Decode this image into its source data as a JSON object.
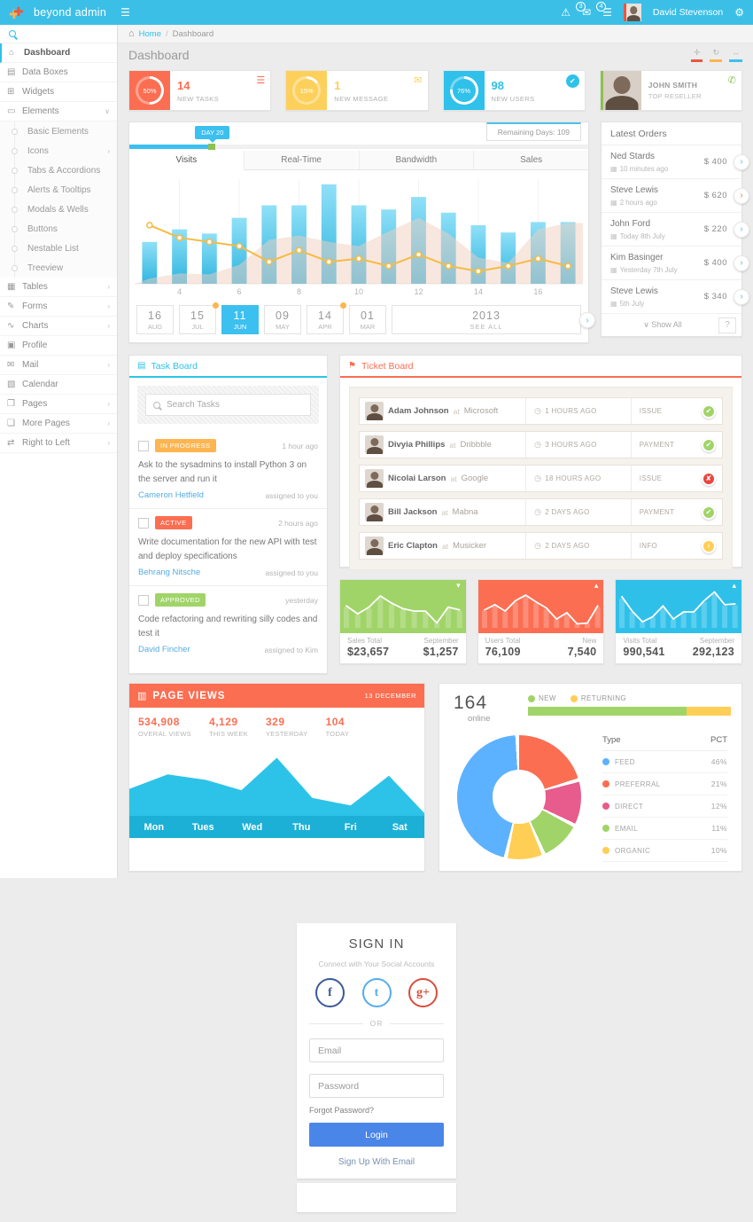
{
  "nav": {
    "brand": "beyond admin",
    "user_name": "David Stevenson",
    "message_badge": "3",
    "task_badge": "4",
    "warning_glyph": "⚠",
    "envelope_glyph": "✉",
    "tasks_glyph": "☰",
    "gear_glyph": "⚙",
    "burger_glyph": "☰"
  },
  "breadcrumb": {
    "home_glyph": "⌂",
    "home": "Home",
    "separator": "/",
    "current": "Dashboard"
  },
  "page": {
    "title": "Dashboard"
  },
  "widget_controls": [
    {
      "icon": "expand-icon",
      "glyph": "✛",
      "color": "#e9573f"
    },
    {
      "icon": "refresh-icon",
      "glyph": "↻",
      "color": "#fcb551"
    },
    {
      "icon": "collapse-icon",
      "glyph": "↔",
      "color": "#3bc0f0"
    }
  ],
  "sidebar": {
    "items": [
      {
        "label": "Dashboard",
        "glyph": "⌂",
        "icon": "home-icon",
        "cls": "top active",
        "arrow": ""
      },
      {
        "label": "Data Boxes",
        "glyph": "▤",
        "icon": "data-boxes-icon",
        "cls": "top",
        "arrow": ""
      },
      {
        "label": "Widgets",
        "glyph": "⊞",
        "icon": "widgets-icon",
        "cls": "top",
        "arrow": ""
      },
      {
        "label": "Elements",
        "glyph": "▭",
        "icon": "monitor-icon",
        "cls": "top open",
        "arrow": "∨"
      },
      {
        "label": "Basic Elements",
        "cls": "sub",
        "arrow": ""
      },
      {
        "label": "Icons",
        "cls": "sub",
        "arrow": "›"
      },
      {
        "label": "Tabs & Accordions",
        "cls": "sub",
        "arrow": ""
      },
      {
        "label": "Alerts & Tooltips",
        "cls": "sub",
        "arrow": ""
      },
      {
        "label": "Modals & Wells",
        "cls": "sub",
        "arrow": ""
      },
      {
        "label": "Buttons",
        "cls": "sub",
        "arrow": ""
      },
      {
        "label": "Nestable List",
        "cls": "sub",
        "arrow": ""
      },
      {
        "label": "Treeview",
        "cls": "sub",
        "arrow": ""
      },
      {
        "label": "Tables",
        "glyph": "▦",
        "icon": "tables-icon",
        "cls": "top",
        "arrow": "›"
      },
      {
        "label": "Forms",
        "glyph": "✎",
        "icon": "forms-icon",
        "cls": "top",
        "arrow": "›"
      },
      {
        "label": "Charts",
        "glyph": "∿",
        "icon": "charts-icon",
        "cls": "top",
        "arrow": "›"
      },
      {
        "label": "Profile",
        "glyph": "▣",
        "icon": "profile-icon",
        "cls": "top",
        "arrow": ""
      },
      {
        "label": "Mail",
        "glyph": "✉",
        "icon": "mail-icon",
        "cls": "top",
        "arrow": "›"
      },
      {
        "label": "Calendar",
        "glyph": "▧",
        "icon": "calendar-icon",
        "cls": "top",
        "arrow": ""
      },
      {
        "label": "Pages",
        "glyph": "❐",
        "icon": "pages-icon",
        "cls": "top",
        "arrow": "›"
      },
      {
        "label": "More Pages",
        "glyph": "❑",
        "icon": "more-pages-icon",
        "cls": "top",
        "arrow": "›"
      },
      {
        "label": "Right to Left",
        "glyph": "⇄",
        "icon": "rtl-icon",
        "cls": "top",
        "arrow": "›"
      }
    ]
  },
  "stat_cards": [
    {
      "pct": 50,
      "pct_label": "50%",
      "value": "14",
      "label": "NEW TASKS",
      "color": "#fb6e52",
      "icon": "task-list-icon",
      "icon_glyph": "☰",
      "icon_cls": ""
    },
    {
      "pct": 15,
      "pct_label": "15%",
      "value": "1",
      "label": "NEW MESSAGE",
      "color": "#fcd05b",
      "icon": "envelope-icon",
      "icon_glyph": "✉",
      "icon_cls": ""
    },
    {
      "pct": 76,
      "pct_label": "76%",
      "value": "98",
      "label": "NEW USERS",
      "color": "#2fc1ea",
      "icon": "check-badge-icon",
      "icon_glyph": "✔",
      "icon_cls": "badge"
    }
  ],
  "reseller": {
    "name": "JOHN SMITH",
    "role": "TOP RESELLER",
    "phone_glyph": "✆"
  },
  "visits": {
    "slider_badge": "DAY 20",
    "slider_pct": "18%",
    "remaining": "Remaining Days: 109",
    "tabs": [
      {
        "label": "Visits",
        "cls": "active"
      },
      {
        "label": "Real-Time",
        "cls": ""
      },
      {
        "label": "Bandwidth",
        "cls": ""
      },
      {
        "label": "Sales",
        "cls": ""
      }
    ],
    "dates": [
      {
        "day": "16",
        "month": "AUG",
        "cls": "",
        "dot": false
      },
      {
        "day": "15",
        "month": "JUL",
        "cls": "",
        "dot": true
      },
      {
        "day": "11",
        "month": "JUN",
        "cls": "active",
        "dot": false
      },
      {
        "day": "09",
        "month": "MAY",
        "cls": "",
        "dot": false
      },
      {
        "day": "14",
        "month": "APR",
        "cls": "",
        "dot": true
      },
      {
        "day": "01",
        "month": "MAR",
        "cls": "",
        "dot": false
      }
    ],
    "year": "2013",
    "see_all": "SEE ALL",
    "next_glyph": "›"
  },
  "latest_orders": {
    "title": "Latest Orders",
    "time_glyph": "▦",
    "chev_glyph": "›",
    "items": [
      {
        "name": "Ned Stards",
        "time": "10 minutes ago",
        "amount": "$ 400",
        "chev": "#4fc1e9"
      },
      {
        "name": "Steve Lewis",
        "time": "2 hours ago",
        "amount": "$ 620",
        "chev": "#fb6e52"
      },
      {
        "name": "John Ford",
        "time": "Today 8th July",
        "amount": "$ 220",
        "chev": "#4fc1e9"
      },
      {
        "name": "Kim Basinger",
        "time": "Yesterday 7th July",
        "amount": "$ 400",
        "chev": "#4fc1e9"
      },
      {
        "name": "Steve Lewis",
        "time": "5th July",
        "amount": "$ 340",
        "chev": "#4fc1e9"
      }
    ],
    "show_all": "∨ Show All",
    "help": "?"
  },
  "task_board": {
    "title": "Task Board",
    "head_glyph": "▤",
    "search_placeholder": "Search Tasks",
    "tasks": [
      {
        "status": "IN PROGRESS",
        "status_color": "#fcb551",
        "time": "1 hour ago",
        "text": "Ask to the sysadmins to install Python 3 on the server and run it",
        "assignee": "Cameron Hetfield",
        "assigned": "assigned to you"
      },
      {
        "status": "ACTIVE",
        "status_color": "#fb6e52",
        "time": "2 hours ago",
        "text": "Write documentation for the new API with test and deploy specifications",
        "assignee": "Behrang Nitsche",
        "assigned": "assigned to you"
      },
      {
        "status": "APPROVED",
        "status_color": "#a0d468",
        "time": "yesterday",
        "text": "Code refactoring and rewriting silly codes and test it",
        "assignee": "David Fincher",
        "assigned": "assigned to Kim"
      }
    ]
  },
  "ticket_board": {
    "title": "Ticket Board",
    "head_glyph": "⚑",
    "at_label": "at",
    "time_glyph": "◷",
    "items": [
      {
        "name": "Adam Johnson",
        "company": "Microsoft",
        "time": "1 HOURS AGO",
        "type": "ISSUE",
        "glyph": "✔",
        "color": "#a0d468",
        "status_icon": "check-circle-icon"
      },
      {
        "name": "Divyia Phillips",
        "company": "Dribbble",
        "time": "3 HOURS AGO",
        "type": "PAYMENT",
        "glyph": "✔",
        "color": "#a0d468",
        "status_icon": "check-circle-icon"
      },
      {
        "name": "Nicolai Larson",
        "company": "Google",
        "time": "18 HOURS AGO",
        "type": "ISSUE",
        "glyph": "✘",
        "color": "#e9453f",
        "status_icon": "x-circle-icon"
      },
      {
        "name": "Bill Jackson",
        "company": "Mabna",
        "time": "2 DAYS AGO",
        "type": "PAYMENT",
        "glyph": "✔",
        "color": "#a0d468",
        "status_icon": "check-circle-icon"
      },
      {
        "name": "Eric Clapton",
        "company": "Musicker",
        "time": "2 DAYS AGO",
        "type": "INFO",
        "glyph": "i",
        "color": "#ffce55",
        "status_icon": "info-circle-icon"
      }
    ]
  },
  "mini_widgets": [
    {
      "chart_id": "sales-spark",
      "color": "#a0d468",
      "caret": "▾",
      "caret_icon": "caret-down-icon",
      "l1": "Sales Total",
      "v1": "$23,657",
      "l2": "September",
      "v2": "$1,257"
    },
    {
      "chart_id": "users-spark",
      "color": "#fb6e52",
      "caret": "▴",
      "caret_icon": "caret-up-icon",
      "l1": "Users Total",
      "v1": "76,109",
      "l2": "New",
      "v2": "7,540"
    },
    {
      "chart_id": "visits-spark",
      "color": "#2fc0ea",
      "caret": "▴",
      "caret_icon": "caret-up-icon",
      "l1": "Visits Total",
      "v1": "990,541",
      "l2": "September",
      "v2": "292,123"
    }
  ],
  "page_views": {
    "title": "PAGE VIEWS",
    "head_glyph": "▥",
    "date": "13 DECEMBER",
    "stats": [
      {
        "value": "534,908",
        "label": "OVERAL VIEWS"
      },
      {
        "value": "4,129",
        "label": "THIS WEEK"
      },
      {
        "value": "329",
        "label": "YESTERDAY"
      },
      {
        "value": "104",
        "label": "TODAY"
      }
    ]
  },
  "traffic": {
    "online_value": "164",
    "online_label": "online",
    "table_header_type": "Type",
    "table_header_pct": "PCT"
  },
  "sign_in": {
    "title": "SIGN IN",
    "subtitle": "Connect with Your Social Accounts",
    "facebook_glyph": "f",
    "twitter_glyph": "t",
    "google_glyph": "g+",
    "facebook_color": "#3b5998",
    "twitter_color": "#55acee",
    "google_color": "#dd4b39",
    "or": "OR",
    "email_placeholder": "Email",
    "password_placeholder": "Password",
    "forgot": "Forgot Password?",
    "login": "Login",
    "signup": "Sign Up With Email"
  },
  "chart_data": [
    {
      "id": "visits-overview",
      "kind": "composite",
      "type": "bar",
      "title": "Visits",
      "x_ticks": [
        4,
        6,
        8,
        10,
        12,
        14,
        16
      ],
      "ylim": [
        0,
        100
      ],
      "grid": true,
      "series": [
        {
          "name": "visits-bars",
          "type": "bar",
          "color": "#4cc4ec",
          "values": [
            40,
            52,
            48,
            63,
            75,
            75,
            95,
            75,
            71,
            83,
            68,
            56,
            49,
            59,
            59
          ]
        },
        {
          "name": "trend-line",
          "type": "line",
          "color": "#f6bb42",
          "values": [
            56,
            44,
            40,
            36,
            21,
            32,
            21,
            24,
            17,
            28,
            17,
            12,
            17,
            24,
            17
          ]
        },
        {
          "name": "background-area",
          "type": "area",
          "color": "#f2cfc0",
          "values": [
            5,
            10,
            9,
            18,
            42,
            46,
            40,
            36,
            50,
            63,
            48,
            25,
            20,
            52,
            58
          ]
        }
      ]
    },
    {
      "id": "sales-spark",
      "kind": "sparkline",
      "type": "line",
      "title": "Sales Total",
      "values": [
        55,
        35,
        52,
        80,
        62,
        48,
        42,
        42,
        12,
        52,
        45
      ],
      "color": "#ffffff"
    },
    {
      "id": "users-spark",
      "kind": "sparkline",
      "type": "line",
      "title": "Users Total",
      "values": [
        45,
        58,
        42,
        68,
        82,
        65,
        50,
        22,
        38,
        10,
        12,
        55
      ],
      "color": "#ffffff"
    },
    {
      "id": "visits-spark",
      "kind": "sparkline",
      "type": "line",
      "title": "Visits Total",
      "values": [
        78,
        42,
        15,
        28,
        55,
        22,
        40,
        40,
        68,
        90,
        58,
        60
      ],
      "color": "#ffffff"
    },
    {
      "id": "page-views-area",
      "kind": "area",
      "type": "area",
      "title": "Page Views",
      "color": "#2dc3e8",
      "points": [
        [
          0,
          39
        ],
        [
          13,
          60
        ],
        [
          26,
          52
        ],
        [
          38,
          37
        ],
        [
          50,
          84
        ],
        [
          62,
          26
        ],
        [
          75,
          15
        ],
        [
          88,
          58
        ],
        [
          100,
          4
        ]
      ],
      "x_categories": [
        "Mon",
        "Tues",
        "Wed",
        "Thu",
        "Fri",
        "Sat"
      ]
    },
    {
      "id": "traffic-donut",
      "kind": "donut",
      "type": "pie",
      "title": "Traffic by Type",
      "segments": [
        {
          "label": "FEED",
          "pct": 46,
          "pct_label": "46%",
          "color": "#5db2ff"
        },
        {
          "label": "PREFERRAL",
          "pct": 21,
          "pct_label": "21%",
          "color": "#fb6e52"
        },
        {
          "label": "DIRECT",
          "pct": 12,
          "pct_label": "12%",
          "color": "#e75b8d"
        },
        {
          "label": "EMAIL",
          "pct": 11,
          "pct_label": "11%",
          "color": "#a0d468"
        },
        {
          "label": "ORGANIC",
          "pct": 10,
          "pct_label": "10%",
          "color": "#ffce55"
        }
      ]
    },
    {
      "id": "visitors-split",
      "kind": "split",
      "type": "bar",
      "title": "New vs Returning",
      "segments": [
        {
          "label": "NEW",
          "pct": 78,
          "color": "#a0d468"
        },
        {
          "label": "RETURNING",
          "pct": 22,
          "color": "#ffce55"
        }
      ]
    }
  ]
}
